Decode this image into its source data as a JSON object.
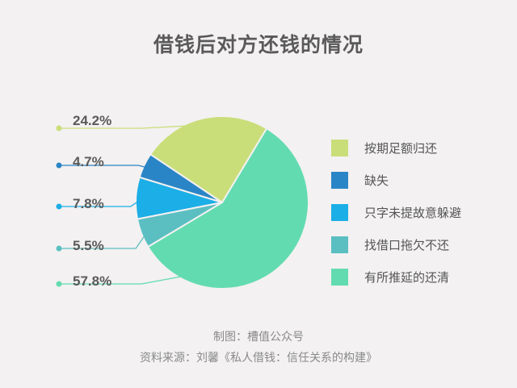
{
  "chart_data": {
    "type": "pie",
    "title": "借钱后对方还钱的情况",
    "series": [
      {
        "name": "按期足额归还",
        "value": 24.2,
        "label": "24.2%",
        "color": "#c9de79"
      },
      {
        "name": "缺失",
        "value": 4.7,
        "label": "4.7%",
        "color": "#2a85c6"
      },
      {
        "name": "只字未提故意躲避",
        "value": 7.8,
        "label": "7.8%",
        "color": "#1caee6"
      },
      {
        "name": "找借口拖欠不还",
        "value": 5.5,
        "label": "5.5%",
        "color": "#5bbfc2"
      },
      {
        "name": "有所推延的还清",
        "value": 57.8,
        "label": "57.8%",
        "color": "#63dbb1"
      }
    ],
    "legend_position": "right"
  },
  "footer": {
    "credit": "制图：槽值公众号",
    "source": "资料来源：刘馨《私人借钱：信任关系的构建》"
  }
}
